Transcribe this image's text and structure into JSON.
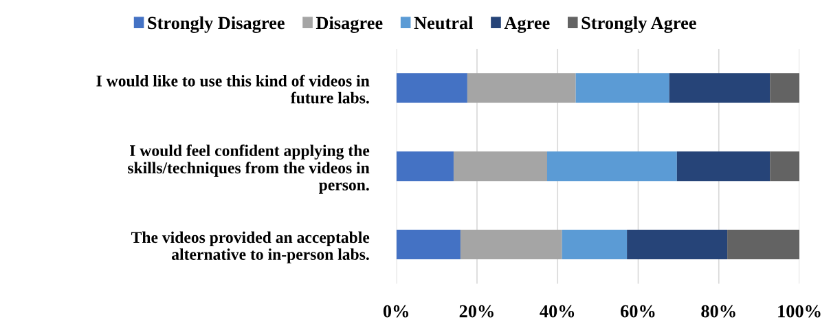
{
  "chart_data": {
    "type": "bar",
    "orientation": "horizontal",
    "stacked": true,
    "categories": [
      "I would like to use this kind of videos in\nfuture labs.",
      "I would feel confident applying the\nskills/techniques from the videos in\nperson.",
      "The videos provided an acceptable\nalternative to in-person labs."
    ],
    "series": [
      {
        "name": "Strongly Disagree",
        "color": "#4472c4",
        "values": [
          17.6,
          14.2,
          15.9
        ]
      },
      {
        "name": "Disagree",
        "color": "#a5a5a5",
        "values": [
          26.9,
          23.2,
          25.2
        ]
      },
      {
        "name": "Neutral",
        "color": "#5b9bd5",
        "values": [
          23.2,
          32.2,
          16.1
        ]
      },
      {
        "name": "Agree",
        "color": "#264478",
        "values": [
          25.0,
          23.1,
          24.9
        ]
      },
      {
        "name": "Strongly Agree",
        "color": "#636363",
        "values": [
          7.3,
          7.3,
          17.9
        ]
      }
    ],
    "xlim": [
      0,
      100
    ],
    "xticks": [
      {
        "value": 0,
        "label": "0%"
      },
      {
        "value": 20,
        "label": "20%"
      },
      {
        "value": 40,
        "label": "40%"
      },
      {
        "value": 60,
        "label": "60%"
      },
      {
        "value": 80,
        "label": "80%"
      },
      {
        "value": 100,
        "label": "100%"
      }
    ],
    "grid": "x",
    "legend": "top"
  }
}
